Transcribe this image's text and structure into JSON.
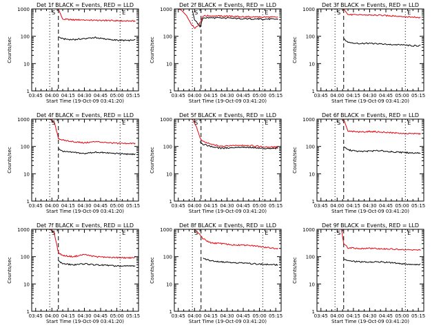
{
  "colors": {
    "events": "#000000",
    "lld": "#e8000b",
    "axis": "#000000"
  },
  "chart_data": [
    {
      "type": "line",
      "title": "Det 1f BLACK = Events, RED = LLD",
      "xlabel": "Start Time (19-Oct-09 03:41:20)",
      "ylabel": "Counts/sec",
      "x_ticks": [
        "03:45",
        "04:00",
        "04:15",
        "04:30",
        "04:45",
        "05:00",
        "05:15"
      ],
      "y_ticks": [
        "1",
        "10",
        "100",
        "1000"
      ],
      "ylim": [
        1,
        1000
      ],
      "yscale": "log",
      "markers": [
        {
          "label": "S",
          "style": "dotted",
          "time": "03:58"
        },
        {
          "label": "",
          "style": "dashed",
          "time": "04:06"
        },
        {
          "label": "E",
          "style": "dotted",
          "time": "05:03"
        }
      ],
      "series": [
        {
          "name": "LLD",
          "color": "red",
          "x": [
            "04:06",
            "04:10",
            "04:20",
            "04:30",
            "04:40",
            "04:50",
            "05:00",
            "05:10",
            "05:17"
          ],
          "y": [
            1000,
            420,
            400,
            400,
            380,
            380,
            370,
            360,
            360
          ]
        },
        {
          "name": "Events",
          "color": "black",
          "x": [
            "04:06",
            "04:10",
            "04:20",
            "04:30",
            "04:40",
            "04:50",
            "05:00",
            "05:10",
            "05:17"
          ],
          "y": [
            95,
            80,
            75,
            82,
            90,
            78,
            72,
            70,
            72
          ]
        }
      ]
    },
    {
      "type": "line",
      "title": "Det 2f BLACK = Events, RED = LLD",
      "xlabel": "Start Time (19-Oct-09 03:41:20)",
      "ylabel": "Counts/sec",
      "x_ticks": [
        "03:45",
        "04:00",
        "04:15",
        "04:30",
        "04:45",
        "05:00",
        "05:15"
      ],
      "y_ticks": [
        "1",
        "10",
        "100",
        "1000"
      ],
      "ylim": [
        1,
        1000
      ],
      "yscale": "log",
      "markers": [
        {
          "label": "S",
          "style": "dotted",
          "time": "03:58"
        },
        {
          "label": "",
          "style": "dashed",
          "time": "04:06"
        },
        {
          "label": "E",
          "style": "dotted",
          "time": "05:03"
        }
      ],
      "series": [
        {
          "name": "LLD",
          "color": "red",
          "x": [
            "03:45",
            "03:48",
            "03:52",
            "03:56",
            "04:00",
            "04:04",
            "04:08",
            "04:15",
            "04:30",
            "04:45",
            "05:00",
            "05:17"
          ],
          "y": [
            1000,
            900,
            600,
            320,
            200,
            260,
            560,
            560,
            540,
            520,
            510,
            500
          ]
        },
        {
          "name": "Events",
          "color": "black",
          "x": [
            "03:58",
            "04:00",
            "04:05",
            "04:08",
            "04:15",
            "04:30",
            "04:45",
            "05:00",
            "05:17"
          ],
          "y": [
            900,
            400,
            230,
            480,
            470,
            460,
            440,
            430,
            420
          ]
        }
      ]
    },
    {
      "type": "line",
      "title": "Det 3f BLACK = Events, RED = LLD",
      "xlabel": "Start Time (19-Oct-09 03:41:20)",
      "ylabel": "Counts/sec",
      "x_ticks": [
        "03:45",
        "04:00",
        "04:15",
        "04:30",
        "04:45",
        "05:00",
        "05:15"
      ],
      "y_ticks": [
        "1",
        "10",
        "100",
        "1000"
      ],
      "ylim": [
        1,
        1000
      ],
      "yscale": "log",
      "markers": [
        {
          "label": "S",
          "style": "dotted",
          "time": "03:58"
        },
        {
          "label": "",
          "style": "dashed",
          "time": "04:06"
        },
        {
          "label": "E",
          "style": "dotted",
          "time": "05:03"
        }
      ],
      "series": [
        {
          "name": "LLD",
          "color": "red",
          "x": [
            "04:06",
            "04:10",
            "04:20",
            "04:30",
            "04:40",
            "04:50",
            "05:00",
            "05:10",
            "05:17"
          ],
          "y": [
            1000,
            620,
            600,
            600,
            580,
            560,
            540,
            500,
            480
          ]
        },
        {
          "name": "Events",
          "color": "black",
          "x": [
            "04:06",
            "04:10",
            "04:20",
            "04:30",
            "04:40",
            "04:50",
            "05:00",
            "05:10",
            "05:17"
          ],
          "y": [
            80,
            60,
            55,
            55,
            52,
            50,
            48,
            45,
            45
          ]
        }
      ]
    },
    {
      "type": "line",
      "title": "Det 4f BLACK = Events, RED = LLD",
      "xlabel": "Start Time (19-Oct-09 03:41:20)",
      "ylabel": "Counts/sec",
      "x_ticks": [
        "03:45",
        "04:00",
        "04:15",
        "04:30",
        "04:45",
        "05:00",
        "05:15"
      ],
      "y_ticks": [
        "1",
        "10",
        "100",
        "1000"
      ],
      "ylim": [
        1,
        1000
      ],
      "yscale": "log",
      "markers": [
        {
          "label": "S",
          "style": "dotted",
          "time": "03:58"
        },
        {
          "label": "",
          "style": "dashed",
          "time": "04:06"
        },
        {
          "label": "E",
          "style": "dotted",
          "time": "05:03"
        }
      ],
      "series": [
        {
          "name": "LLD",
          "color": "red",
          "x": [
            "03:58",
            "04:02",
            "04:06",
            "04:10",
            "04:20",
            "04:30",
            "04:40",
            "04:50",
            "05:00",
            "05:10",
            "05:17"
          ],
          "y": [
            1000,
            800,
            200,
            170,
            150,
            135,
            150,
            140,
            130,
            125,
            130
          ]
        },
        {
          "name": "Events",
          "color": "black",
          "x": [
            "04:06",
            "04:10",
            "04:20",
            "04:30",
            "04:40",
            "04:50",
            "05:00",
            "05:10",
            "05:17"
          ],
          "y": [
            85,
            65,
            60,
            55,
            62,
            58,
            55,
            52,
            52
          ]
        }
      ]
    },
    {
      "type": "line",
      "title": "Det 5f BLACK = Events, RED = LLD",
      "xlabel": "Start Time (19-Oct-09 03:41:20)",
      "ylabel": "Counts/sec",
      "x_ticks": [
        "03:45",
        "04:00",
        "04:15",
        "04:30",
        "04:45",
        "05:00",
        "05:15"
      ],
      "y_ticks": [
        "1",
        "10",
        "100",
        "1000"
      ],
      "ylim": [
        1,
        1000
      ],
      "yscale": "log",
      "markers": [
        {
          "label": "S",
          "style": "dotted",
          "time": "03:58"
        },
        {
          "label": "",
          "style": "dashed",
          "time": "04:06"
        },
        {
          "label": "E",
          "style": "dotted",
          "time": "05:03"
        }
      ],
      "series": [
        {
          "name": "LLD",
          "color": "red",
          "x": [
            "03:58",
            "04:02",
            "04:05",
            "04:08",
            "04:15",
            "04:25",
            "04:35",
            "04:45",
            "04:55",
            "05:05",
            "05:17"
          ],
          "y": [
            1000,
            500,
            200,
            150,
            120,
            100,
            110,
            112,
            105,
            95,
            95
          ]
        },
        {
          "name": "Events",
          "color": "black",
          "x": [
            "04:05",
            "04:08",
            "04:15",
            "04:25",
            "04:35",
            "04:45",
            "04:55",
            "05:05",
            "05:17"
          ],
          "y": [
            150,
            120,
            100,
            85,
            92,
            95,
            90,
            82,
            85
          ]
        }
      ]
    },
    {
      "type": "line",
      "title": "Det 6f BLACK = Events, RED = LLD",
      "xlabel": "Start Time (19-Oct-09 03:41:20)",
      "ylabel": "Counts/sec",
      "x_ticks": [
        "03:45",
        "04:00",
        "04:15",
        "04:30",
        "04:45",
        "05:00",
        "05:15"
      ],
      "y_ticks": [
        "1",
        "10",
        "100",
        "1000"
      ],
      "ylim": [
        1,
        1000
      ],
      "yscale": "log",
      "markers": [
        {
          "label": "S",
          "style": "dotted",
          "time": "03:58"
        },
        {
          "label": "",
          "style": "dashed",
          "time": "04:06"
        },
        {
          "label": "E",
          "style": "dotted",
          "time": "05:03"
        }
      ],
      "series": [
        {
          "name": "LLD",
          "color": "red",
          "x": [
            "04:06",
            "04:10",
            "04:20",
            "04:30",
            "04:40",
            "04:50",
            "05:00",
            "05:10",
            "05:17"
          ],
          "y": [
            1000,
            360,
            340,
            350,
            340,
            320,
            300,
            290,
            290
          ]
        },
        {
          "name": "Events",
          "color": "black",
          "x": [
            "04:06",
            "04:10",
            "04:20",
            "04:30",
            "04:40",
            "04:50",
            "05:00",
            "05:10",
            "05:17"
          ],
          "y": [
            95,
            75,
            65,
            68,
            70,
            64,
            60,
            58,
            58
          ]
        }
      ]
    },
    {
      "type": "line",
      "title": "Det 7f BLACK = Events, RED = LLD",
      "xlabel": "Start Time (19-Oct-09 03:41:20)",
      "ylabel": "Counts/sec",
      "x_ticks": [
        "03:45",
        "04:00",
        "04:15",
        "04:30",
        "04:45",
        "05:00",
        "05:15"
      ],
      "y_ticks": [
        "1",
        "10",
        "100",
        "1000"
      ],
      "ylim": [
        1,
        1000
      ],
      "yscale": "log",
      "markers": [
        {
          "label": "S",
          "style": "dotted",
          "time": "03:58"
        },
        {
          "label": "",
          "style": "dashed",
          "time": "04:06"
        },
        {
          "label": "E",
          "style": "dotted",
          "time": "05:03"
        }
      ],
      "series": [
        {
          "name": "LLD",
          "color": "red",
          "x": [
            "03:58",
            "04:02",
            "04:06",
            "04:10",
            "04:20",
            "04:30",
            "04:40",
            "04:50",
            "05:00",
            "05:10",
            "05:17"
          ],
          "y": [
            1000,
            800,
            140,
            110,
            100,
            120,
            100,
            95,
            92,
            90,
            92
          ]
        },
        {
          "name": "Events",
          "color": "black",
          "x": [
            "04:06",
            "04:10",
            "04:20",
            "04:30",
            "04:40",
            "04:50",
            "05:00",
            "05:10",
            "05:17"
          ],
          "y": [
            70,
            55,
            50,
            55,
            50,
            48,
            45,
            45,
            45
          ]
        }
      ]
    },
    {
      "type": "line",
      "title": "Det 8f BLACK = Events, RED = LLD",
      "xlabel": "Start Time (19-Oct-09 03:41:20)",
      "ylabel": "Counts/sec",
      "x_ticks": [
        "03:45",
        "04:00",
        "04:15",
        "04:30",
        "04:45",
        "05:00",
        "05:15"
      ],
      "y_ticks": [
        "1",
        "10",
        "100",
        "1000"
      ],
      "ylim": [
        1,
        1000
      ],
      "yscale": "log",
      "markers": [
        {
          "label": "S",
          "style": "dotted",
          "time": "03:58"
        },
        {
          "label": "",
          "style": "dashed",
          "time": "04:06"
        },
        {
          "label": "E",
          "style": "dotted",
          "time": "05:03"
        }
      ],
      "series": [
        {
          "name": "LLD",
          "color": "red",
          "x": [
            "04:00",
            "04:04",
            "04:08",
            "04:15",
            "04:25",
            "04:35",
            "04:45",
            "04:55",
            "05:05",
            "05:17"
          ],
          "y": [
            1000,
            700,
            450,
            320,
            300,
            270,
            260,
            250,
            220,
            200
          ]
        },
        {
          "name": "Events",
          "color": "black",
          "x": [
            "04:08",
            "04:10",
            "04:15",
            "04:25",
            "04:35",
            "04:45",
            "04:55",
            "05:05",
            "05:17"
          ],
          "y": [
            90,
            80,
            72,
            65,
            62,
            58,
            55,
            52,
            50
          ]
        }
      ]
    },
    {
      "type": "line",
      "title": "Det 9f BLACK = Events, RED = LLD",
      "xlabel": "Start Time (19-Oct-09 03:41:20)",
      "ylabel": "Counts/sec",
      "x_ticks": [
        "03:45",
        "04:00",
        "04:15",
        "04:30",
        "04:45",
        "05:00",
        "05:15"
      ],
      "y_ticks": [
        "1",
        "10",
        "100",
        "1000"
      ],
      "ylim": [
        1,
        1000
      ],
      "yscale": "log",
      "markers": [
        {
          "label": "S",
          "style": "dotted",
          "time": "03:58"
        },
        {
          "label": "",
          "style": "dashed",
          "time": "04:06"
        },
        {
          "label": "E",
          "style": "dotted",
          "time": "05:03"
        }
      ],
      "series": [
        {
          "name": "LLD",
          "color": "red",
          "x": [
            "04:04",
            "04:06",
            "04:10",
            "04:20",
            "04:30",
            "04:40",
            "04:50",
            "05:00",
            "05:10",
            "05:17"
          ],
          "y": [
            1000,
            300,
            210,
            200,
            200,
            195,
            190,
            180,
            175,
            175
          ]
        },
        {
          "name": "Events",
          "color": "black",
          "x": [
            "04:06",
            "04:10",
            "04:20",
            "04:30",
            "04:40",
            "04:50",
            "05:00",
            "05:10",
            "05:17"
          ],
          "y": [
            85,
            70,
            65,
            62,
            65,
            60,
            55,
            52,
            52
          ]
        }
      ]
    }
  ]
}
